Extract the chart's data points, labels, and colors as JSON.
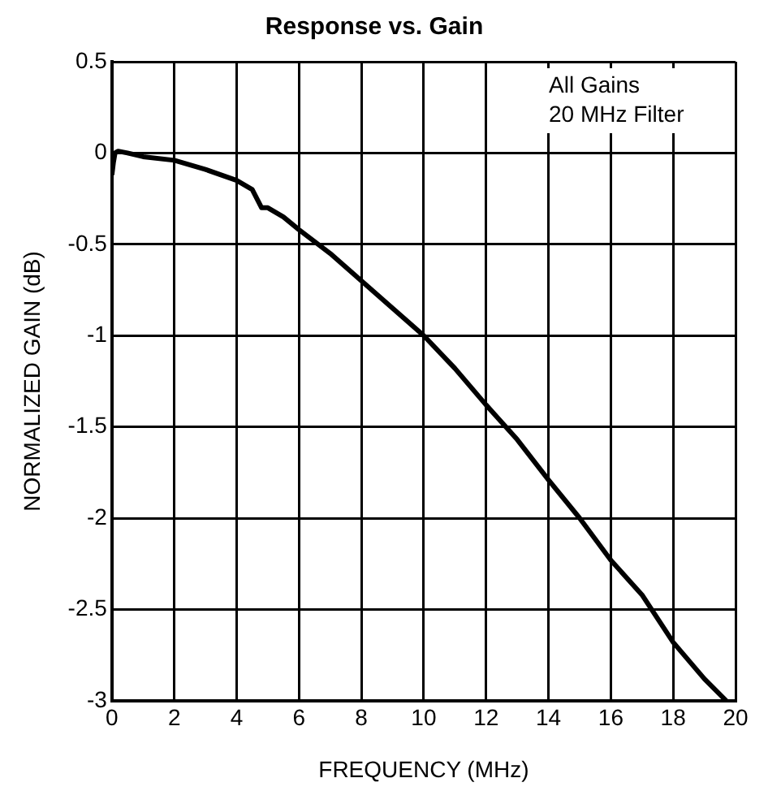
{
  "chart_data": {
    "type": "line",
    "title": "Response vs. Gain",
    "xlabel": "FREQUENCY (MHz)",
    "ylabel": "NORMALIZED GAIN (dB)",
    "annotations": [
      "All Gains\n20 MHz Filter"
    ],
    "x": [
      0,
      0.05,
      0.1,
      0.2,
      0.5,
      1,
      2,
      3,
      4,
      4.5,
      4.8,
      5,
      5.5,
      6,
      7,
      8,
      9,
      10,
      11,
      12,
      13,
      14,
      15,
      16,
      17,
      18,
      19,
      19.7
    ],
    "series": [
      {
        "color": "#000000",
        "values": [
          -0.12,
          -0.05,
          0,
          0.01,
          0,
          -0.02,
          -0.04,
          -0.09,
          -0.15,
          -0.2,
          -0.3,
          -0.3,
          -0.35,
          -0.42,
          -0.55,
          -0.7,
          -0.85,
          -1.0,
          -1.18,
          -1.38,
          -1.57,
          -1.79,
          -2.0,
          -2.23,
          -2.42,
          -2.68,
          -2.88,
          -3.0
        ]
      }
    ],
    "xlim": [
      0,
      20
    ],
    "xticks": [
      0,
      2,
      4,
      6,
      8,
      10,
      12,
      14,
      16,
      18,
      20
    ],
    "ylim": [
      -3,
      0.5
    ],
    "yticks": [
      -3,
      -2.5,
      -2,
      -1.5,
      -1,
      -0.5,
      0,
      0.5
    ],
    "grid": true,
    "legend": false,
    "marker": "none",
    "line_style": "solid"
  }
}
